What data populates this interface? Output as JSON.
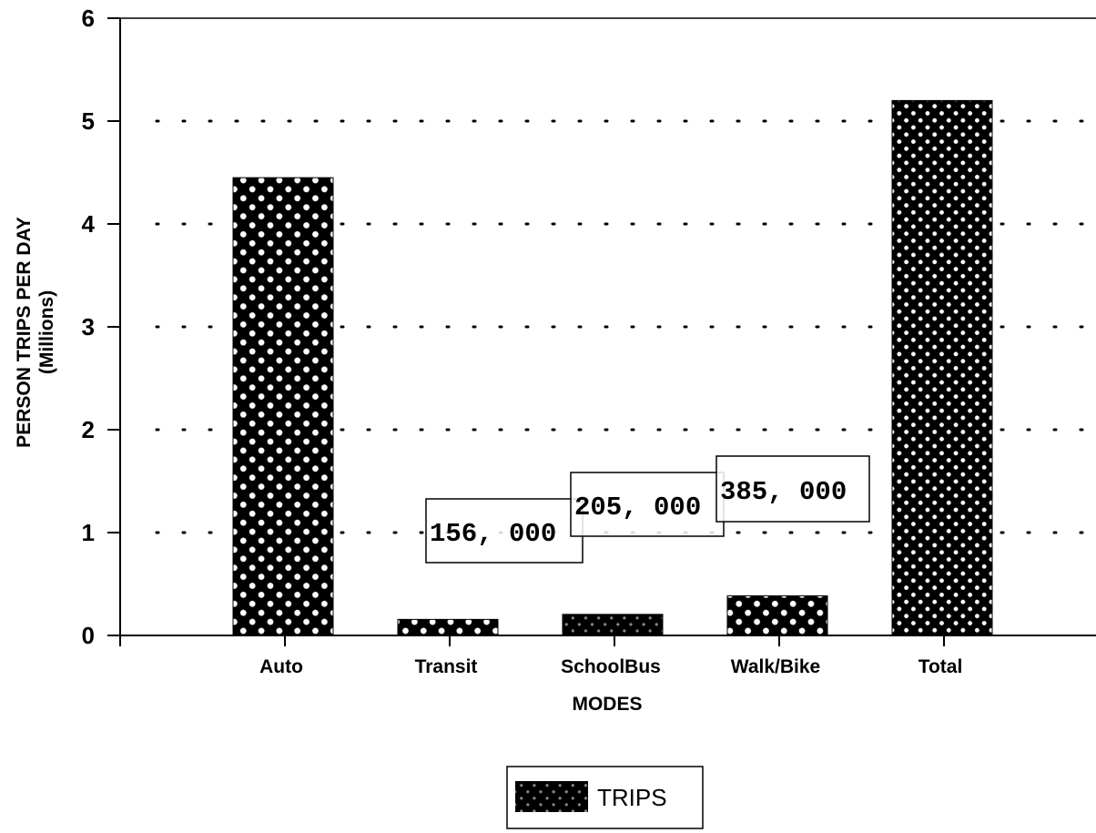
{
  "chart_data": {
    "type": "bar",
    "title": "",
    "ylabel": "PERSON TRIPS PER DAY",
    "ylabel_units": "(Millions)",
    "xlabel": "MODES",
    "categories": [
      "Auto",
      "Transit",
      "SchoolBus",
      "Walk/Bike",
      "Total"
    ],
    "category_labels_display": [
      "Auto",
      "Transit",
      "SchoolBus",
      "Walk/Bike",
      "Total"
    ],
    "series": [
      {
        "name": "TRIPS",
        "values": [
          4.45,
          0.156,
          0.205,
          0.385,
          5.2
        ]
      }
    ],
    "ylim": [
      0,
      6
    ],
    "yticks": [
      "0",
      "1",
      "2",
      "3",
      "4",
      "5",
      "6"
    ],
    "grid": "dotted-horizontal",
    "legend": {
      "position": "bottom-center",
      "entries": [
        "TRIPS"
      ]
    },
    "annotations": [
      {
        "category": "Transit",
        "text": "156, 000"
      },
      {
        "category": "SchoolBus",
        "text": "205, 000"
      },
      {
        "category": "Walk/Bike",
        "text": "385, 000"
      }
    ],
    "colors": {
      "bar_fill": "#000000",
      "pattern": "#ffffff"
    }
  }
}
